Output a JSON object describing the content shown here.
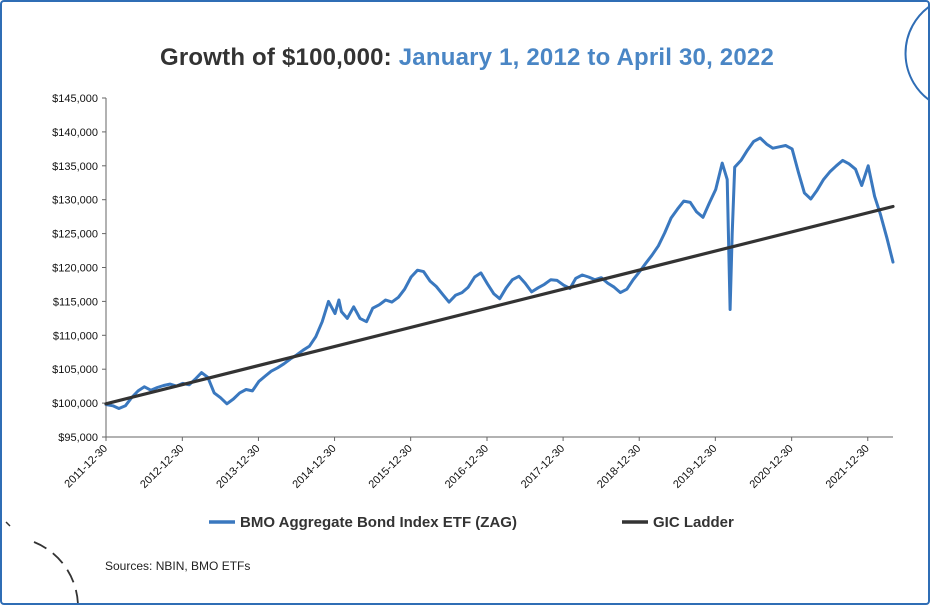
{
  "title": {
    "prefix": "Growth of $100,000:",
    "range": "January 1, 2012 to April 30, 2022"
  },
  "source": "Sources: NBIN, BMO ETFs",
  "colors": {
    "zag": "#3a78bf",
    "gic": "#333333",
    "title_blue": "#4a86c5",
    "frame": "#2f6db5"
  },
  "chart_data": {
    "type": "line",
    "title": "Growth of $100,000: January 1, 2012 to April 30, 2022",
    "xlabel": "",
    "ylabel": "",
    "ylim": [
      95000,
      145000
    ],
    "xlim": [
      "2011-12-30",
      "2022-04-30"
    ],
    "y_ticks": [
      95000,
      100000,
      105000,
      110000,
      115000,
      120000,
      125000,
      130000,
      135000,
      140000,
      145000
    ],
    "y_tick_labels": [
      "$95,000",
      "$100,000",
      "$105,000",
      "$110,000",
      "$115,000",
      "$120,000",
      "$125,000",
      "$130,000",
      "$135,000",
      "$140,000",
      "$145,000"
    ],
    "x_ticks": [
      "2011-12-30",
      "2012-12-30",
      "2013-12-30",
      "2014-12-30",
      "2015-12-30",
      "2016-12-30",
      "2017-12-30",
      "2018-12-30",
      "2019-12-30",
      "2020-12-30",
      "2021-12-30"
    ],
    "grid": false,
    "legend_position": "bottom",
    "series": [
      {
        "name": "BMO Aggregate Bond Index ETF (ZAG)",
        "color": "#3a78bf",
        "x": [
          "2011-12-30",
          "2012-02-01",
          "2012-03-01",
          "2012-04-01",
          "2012-05-01",
          "2012-06-01",
          "2012-07-01",
          "2012-08-01",
          "2012-09-01",
          "2012-10-01",
          "2012-11-01",
          "2012-12-01",
          "2013-01-01",
          "2013-02-01",
          "2013-03-01",
          "2013-04-01",
          "2013-05-01",
          "2013-06-01",
          "2013-07-01",
          "2013-08-01",
          "2013-09-01",
          "2013-10-01",
          "2013-11-01",
          "2013-12-01",
          "2014-01-01",
          "2014-02-01",
          "2014-03-01",
          "2014-04-01",
          "2014-05-01",
          "2014-06-01",
          "2014-07-01",
          "2014-08-01",
          "2014-09-01",
          "2014-10-01",
          "2014-11-01",
          "2014-12-01",
          "2015-01-01",
          "2015-01-20",
          "2015-02-01",
          "2015-03-01",
          "2015-04-01",
          "2015-05-01",
          "2015-06-01",
          "2015-07-01",
          "2015-08-01",
          "2015-09-01",
          "2015-10-01",
          "2015-11-01",
          "2015-12-01",
          "2016-01-01",
          "2016-02-01",
          "2016-03-01",
          "2016-04-01",
          "2016-05-01",
          "2016-06-01",
          "2016-07-01",
          "2016-08-01",
          "2016-09-01",
          "2016-10-01",
          "2016-11-01",
          "2016-12-01",
          "2017-01-01",
          "2017-02-01",
          "2017-03-01",
          "2017-04-01",
          "2017-05-01",
          "2017-06-01",
          "2017-07-01",
          "2017-08-01",
          "2017-09-01",
          "2017-10-01",
          "2017-11-01",
          "2017-12-01",
          "2018-01-01",
          "2018-02-01",
          "2018-03-01",
          "2018-04-01",
          "2018-05-01",
          "2018-06-01",
          "2018-07-01",
          "2018-08-01",
          "2018-09-01",
          "2018-10-01",
          "2018-11-01",
          "2018-12-01",
          "2019-01-01",
          "2019-02-01",
          "2019-03-01",
          "2019-04-01",
          "2019-05-01",
          "2019-06-01",
          "2019-07-01",
          "2019-08-01",
          "2019-09-01",
          "2019-10-01",
          "2019-11-01",
          "2019-12-01",
          "2020-01-01",
          "2020-02-01",
          "2020-02-25",
          "2020-03-10",
          "2020-03-20",
          "2020-04-01",
          "2020-05-01",
          "2020-06-01",
          "2020-07-01",
          "2020-08-01",
          "2020-09-01",
          "2020-10-01",
          "2020-11-01",
          "2020-12-01",
          "2021-01-01",
          "2021-02-01",
          "2021-03-01",
          "2021-04-01",
          "2021-05-01",
          "2021-06-01",
          "2021-07-01",
          "2021-08-01",
          "2021-09-01",
          "2021-10-01",
          "2021-11-01",
          "2021-12-01",
          "2022-01-01",
          "2022-02-01",
          "2022-03-01",
          "2022-04-01",
          "2022-04-30"
        ],
        "values": [
          99800,
          99600,
          99200,
          99600,
          100800,
          101800,
          102400,
          101900,
          102300,
          102600,
          102800,
          102500,
          102900,
          102700,
          103500,
          104500,
          103800,
          101500,
          100800,
          99900,
          100600,
          101500,
          102000,
          101800,
          103200,
          104000,
          104700,
          105200,
          105800,
          106500,
          107100,
          107800,
          108400,
          109800,
          112000,
          115000,
          113200,
          115200,
          113500,
          112500,
          114200,
          112500,
          112000,
          114000,
          114500,
          115200,
          114900,
          115600,
          116800,
          118600,
          119600,
          119400,
          118000,
          117200,
          116000,
          114900,
          115900,
          116300,
          117100,
          118600,
          119200,
          117600,
          116100,
          115400,
          117000,
          118200,
          118700,
          117700,
          116400,
          117000,
          117500,
          118200,
          118100,
          117400,
          116900,
          118400,
          118900,
          118600,
          118200,
          118500,
          117700,
          117100,
          116300,
          116800,
          118200,
          119400,
          120700,
          121800,
          123200,
          125100,
          127300,
          128600,
          129800,
          129600,
          128200,
          127400,
          129500,
          131500,
          135400,
          133000,
          113800,
          125000,
          134800,
          135800,
          137300,
          138600,
          139100,
          138200,
          137600,
          137800,
          138000,
          137500,
          134000,
          131000,
          130100,
          131400,
          133000,
          134100,
          135000,
          135800,
          135300,
          134500,
          132100,
          135000,
          130500,
          127800,
          124300,
          120800
        ]
      },
      {
        "name": "GIC Ladder",
        "color": "#333333",
        "x": [
          "2011-12-30",
          "2022-04-30"
        ],
        "values": [
          99900,
          129000
        ]
      }
    ]
  }
}
